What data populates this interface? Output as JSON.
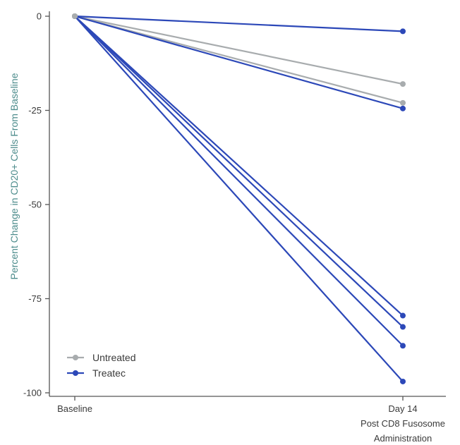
{
  "chart_data": {
    "type": "line",
    "title": "",
    "xlabel": "",
    "ylabel": "Percent Change in CD20+ Cells From Baseline",
    "categories": [
      "Baseline",
      "Day 14\nPost CD8 Fusosome\nAdministration"
    ],
    "category_lines": [
      [
        "Baseline"
      ],
      [
        "Day 14",
        "Post CD8 Fusosome",
        "Administration"
      ]
    ],
    "ylim": [
      -100,
      0
    ],
    "yticks": [
      0,
      -25,
      -50,
      -75,
      -100
    ],
    "grid": false,
    "legend_position": "bottom-left",
    "colors": {
      "untreated": "#a8acae",
      "treated": "#2c48b8"
    },
    "legend": [
      {
        "label": "Untreated",
        "group": "untreated"
      },
      {
        "label": "Treatec",
        "group": "treated"
      }
    ],
    "series": [
      {
        "group": "untreated",
        "values": [
          0,
          -18
        ]
      },
      {
        "group": "untreated",
        "values": [
          0,
          -23
        ]
      },
      {
        "group": "treated",
        "values": [
          0,
          -4
        ]
      },
      {
        "group": "treated",
        "values": [
          0,
          -24.5
        ]
      },
      {
        "group": "treated",
        "values": [
          0,
          -79.5
        ]
      },
      {
        "group": "treated",
        "values": [
          0,
          -82.5
        ]
      },
      {
        "group": "treated",
        "values": [
          0,
          -87.5
        ]
      },
      {
        "group": "treated",
        "values": [
          0,
          -97
        ]
      }
    ]
  }
}
